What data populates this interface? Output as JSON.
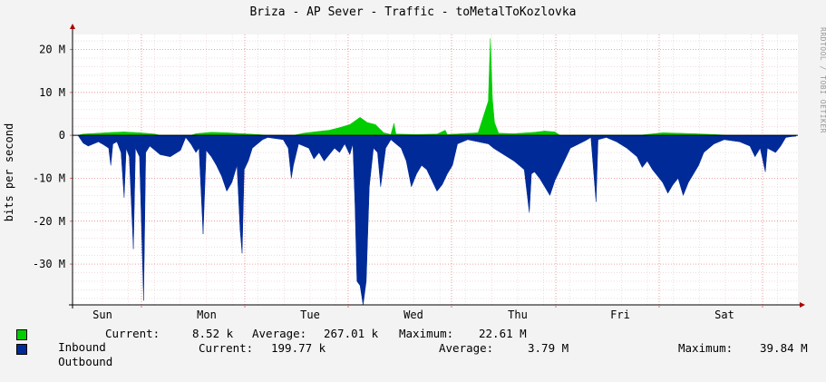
{
  "title": "Briza - AP Sever - Traffic - toMetalToKozlovka",
  "credit": "RRDTOOL / TOBI OETIKER",
  "colors": {
    "inbound": "#00cc00",
    "outbound": "#002a97",
    "background": "#f3f3f3",
    "canvas": "#ffffff",
    "grid_major": "#e07070",
    "grid_minor": "#e8c8c8"
  },
  "legend": {
    "inbound": {
      "name": "Inbound",
      "current_label": "Current:",
      "current": "8.52 k",
      "average_label": "Average:",
      "average": "267.01 k",
      "maximum_label": "Maximum:",
      "maximum": "22.61 M"
    },
    "outbound": {
      "name": "Outbound",
      "current_label": "Current:",
      "current": "199.77 k",
      "average_label": "Average:",
      "average": "3.79 M",
      "maximum_label": "Maximum:",
      "maximum": "39.84 M"
    }
  },
  "chart_data": {
    "type": "area",
    "title": "Briza - AP Sever - Traffic - toMetalToKozlovka",
    "ylabel": "bits per second",
    "xlabel": "",
    "x_ticks": [
      "Sun",
      "Mon",
      "Tue",
      "Wed",
      "Thu",
      "Fri",
      "Sat"
    ],
    "y_ticks": [
      "20 M",
      "10 M",
      "0",
      "-10 M",
      "-20 M",
      "-30 M"
    ],
    "y_tick_values": [
      20,
      10,
      0,
      -10,
      -20,
      -30
    ],
    "ylim": [
      -39.5,
      23.5
    ],
    "x_range": [
      0,
      7
    ],
    "grid": true,
    "series": [
      {
        "name": "Inbound",
        "values": [
          [
            0.0,
            0
          ],
          [
            0.05,
            0.3
          ],
          [
            0.2,
            0.5
          ],
          [
            0.35,
            0.7
          ],
          [
            0.45,
            0.8
          ],
          [
            0.6,
            0.6
          ],
          [
            0.75,
            0.3
          ],
          [
            0.8,
            0
          ],
          [
            1.1,
            0
          ],
          [
            1.15,
            0.4
          ],
          [
            1.3,
            0.7
          ],
          [
            1.45,
            0.6
          ],
          [
            1.6,
            0.4
          ],
          [
            1.75,
            0.2
          ],
          [
            1.85,
            0
          ],
          [
            2.1,
            0
          ],
          [
            2.2,
            0.5
          ],
          [
            2.3,
            0.8
          ],
          [
            2.45,
            1.2
          ],
          [
            2.55,
            1.8
          ],
          [
            2.65,
            2.5
          ],
          [
            2.75,
            4.2
          ],
          [
            2.82,
            3.0
          ],
          [
            2.9,
            2.5
          ],
          [
            2.98,
            0.6
          ],
          [
            3.05,
            0.2
          ],
          [
            3.08,
            2.8
          ],
          [
            3.1,
            0.3
          ],
          [
            3.3,
            0.2
          ],
          [
            3.5,
            0.3
          ],
          [
            3.58,
            1.2
          ],
          [
            3.6,
            0.2
          ],
          [
            3.9,
            0.6
          ],
          [
            4.0,
            8.0
          ],
          [
            4.02,
            22.6
          ],
          [
            4.04,
            8.5
          ],
          [
            4.06,
            3.0
          ],
          [
            4.1,
            0.5
          ],
          [
            4.25,
            0.4
          ],
          [
            4.45,
            0.7
          ],
          [
            4.55,
            1.0
          ],
          [
            4.65,
            0.8
          ],
          [
            4.7,
            0
          ],
          [
            5.5,
            0.1
          ],
          [
            5.7,
            0.6
          ],
          [
            5.85,
            0.5
          ],
          [
            6.0,
            0.4
          ],
          [
            6.2,
            0.2
          ],
          [
            6.35,
            0
          ]
        ]
      },
      {
        "name": "Outbound",
        "values": [
          [
            0.0,
            0
          ],
          [
            0.05,
            -1.8
          ],
          [
            0.1,
            -2.5
          ],
          [
            0.15,
            -2.0
          ],
          [
            0.2,
            -1.5
          ],
          [
            0.25,
            -2.2
          ],
          [
            0.3,
            -3.0
          ],
          [
            0.32,
            -7.0
          ],
          [
            0.34,
            -2.0
          ],
          [
            0.38,
            -1.5
          ],
          [
            0.42,
            -4.0
          ],
          [
            0.45,
            -14.5
          ],
          [
            0.47,
            -3.0
          ],
          [
            0.5,
            -5.0
          ],
          [
            0.54,
            -26.5
          ],
          [
            0.56,
            -3.0
          ],
          [
            0.6,
            -5.0
          ],
          [
            0.64,
            -38.5
          ],
          [
            0.66,
            -4.0
          ],
          [
            0.7,
            -2.5
          ],
          [
            0.75,
            -3.5
          ],
          [
            0.8,
            -4.5
          ],
          [
            0.9,
            -5.0
          ],
          [
            1.0,
            -3.5
          ],
          [
            1.05,
            -0.5
          ],
          [
            1.1,
            -2.0
          ],
          [
            1.15,
            -4.0
          ],
          [
            1.18,
            -3.0
          ],
          [
            1.22,
            -23.0
          ],
          [
            1.25,
            -3.5
          ],
          [
            1.3,
            -5.0
          ],
          [
            1.35,
            -7.0
          ],
          [
            1.4,
            -9.5
          ],
          [
            1.45,
            -13.0
          ],
          [
            1.5,
            -11.0
          ],
          [
            1.55,
            -7.0
          ],
          [
            1.58,
            -22.0
          ],
          [
            1.6,
            -27.5
          ],
          [
            1.62,
            -8.0
          ],
          [
            1.66,
            -6.0
          ],
          [
            1.7,
            -3.0
          ],
          [
            1.8,
            -1.0
          ],
          [
            1.85,
            -0.5
          ],
          [
            2.0,
            -1.0
          ],
          [
            2.05,
            -3.0
          ],
          [
            2.08,
            -10.0
          ],
          [
            2.1,
            -7.0
          ],
          [
            2.15,
            -2.0
          ],
          [
            2.25,
            -3.0
          ],
          [
            2.3,
            -5.5
          ],
          [
            2.35,
            -4.0
          ],
          [
            2.4,
            -6.0
          ],
          [
            2.5,
            -3.0
          ],
          [
            2.55,
            -4.0
          ],
          [
            2.6,
            -2.0
          ],
          [
            2.65,
            -4.5
          ],
          [
            2.68,
            -2.0
          ],
          [
            2.7,
            -16.0
          ],
          [
            2.72,
            -34.0
          ],
          [
            2.75,
            -35.0
          ],
          [
            2.78,
            -39.5
          ],
          [
            2.81,
            -34.0
          ],
          [
            2.84,
            -12.0
          ],
          [
            2.88,
            -3.0
          ],
          [
            2.92,
            -4.0
          ],
          [
            2.95,
            -12.0
          ],
          [
            3.0,
            -3.0
          ],
          [
            3.05,
            -1.0
          ],
          [
            3.1,
            -2.0
          ],
          [
            3.15,
            -3.0
          ],
          [
            3.2,
            -6.0
          ],
          [
            3.25,
            -12.0
          ],
          [
            3.3,
            -9.0
          ],
          [
            3.35,
            -7.0
          ],
          [
            3.4,
            -8.0
          ],
          [
            3.45,
            -10.5
          ],
          [
            3.5,
            -13.0
          ],
          [
            3.55,
            -11.5
          ],
          [
            3.6,
            -9.0
          ],
          [
            3.65,
            -7.0
          ],
          [
            3.7,
            -2.0
          ],
          [
            3.8,
            -1.0
          ],
          [
            3.9,
            -1.5
          ],
          [
            4.0,
            -2.0
          ],
          [
            4.05,
            -3.0
          ],
          [
            4.15,
            -4.5
          ],
          [
            4.25,
            -6.0
          ],
          [
            4.35,
            -8.0
          ],
          [
            4.4,
            -18.0
          ],
          [
            4.42,
            -9.0
          ],
          [
            4.45,
            -8.5
          ],
          [
            4.5,
            -10.0
          ],
          [
            4.55,
            -12.0
          ],
          [
            4.6,
            -14.0
          ],
          [
            4.65,
            -10.5
          ],
          [
            4.7,
            -8.0
          ],
          [
            4.8,
            -3.0
          ],
          [
            4.95,
            -1.2
          ],
          [
            5.0,
            -0.5
          ],
          [
            5.05,
            -15.5
          ],
          [
            5.07,
            -1.0
          ],
          [
            5.15,
            -0.5
          ],
          [
            5.25,
            -1.5
          ],
          [
            5.35,
            -3.0
          ],
          [
            5.45,
            -5.0
          ],
          [
            5.5,
            -7.5
          ],
          [
            5.55,
            -6.0
          ],
          [
            5.6,
            -8.0
          ],
          [
            5.65,
            -9.5
          ],
          [
            5.7,
            -11.0
          ],
          [
            5.75,
            -13.5
          ],
          [
            5.8,
            -11.5
          ],
          [
            5.85,
            -10.0
          ],
          [
            5.9,
            -14.0
          ],
          [
            5.95,
            -11.0
          ],
          [
            6.0,
            -9.0
          ],
          [
            6.05,
            -7.0
          ],
          [
            6.1,
            -4.0
          ],
          [
            6.2,
            -2.0
          ],
          [
            6.3,
            -1.0
          ],
          [
            6.45,
            -1.5
          ],
          [
            6.55,
            -2.5
          ],
          [
            6.6,
            -5.0
          ],
          [
            6.65,
            -3.0
          ],
          [
            6.7,
            -8.5
          ],
          [
            6.72,
            -3.0
          ],
          [
            6.8,
            -4.0
          ],
          [
            6.85,
            -2.5
          ],
          [
            6.9,
            -0.5
          ],
          [
            6.95,
            -0.3
          ],
          [
            7.0,
            -0.2
          ]
        ]
      }
    ]
  }
}
